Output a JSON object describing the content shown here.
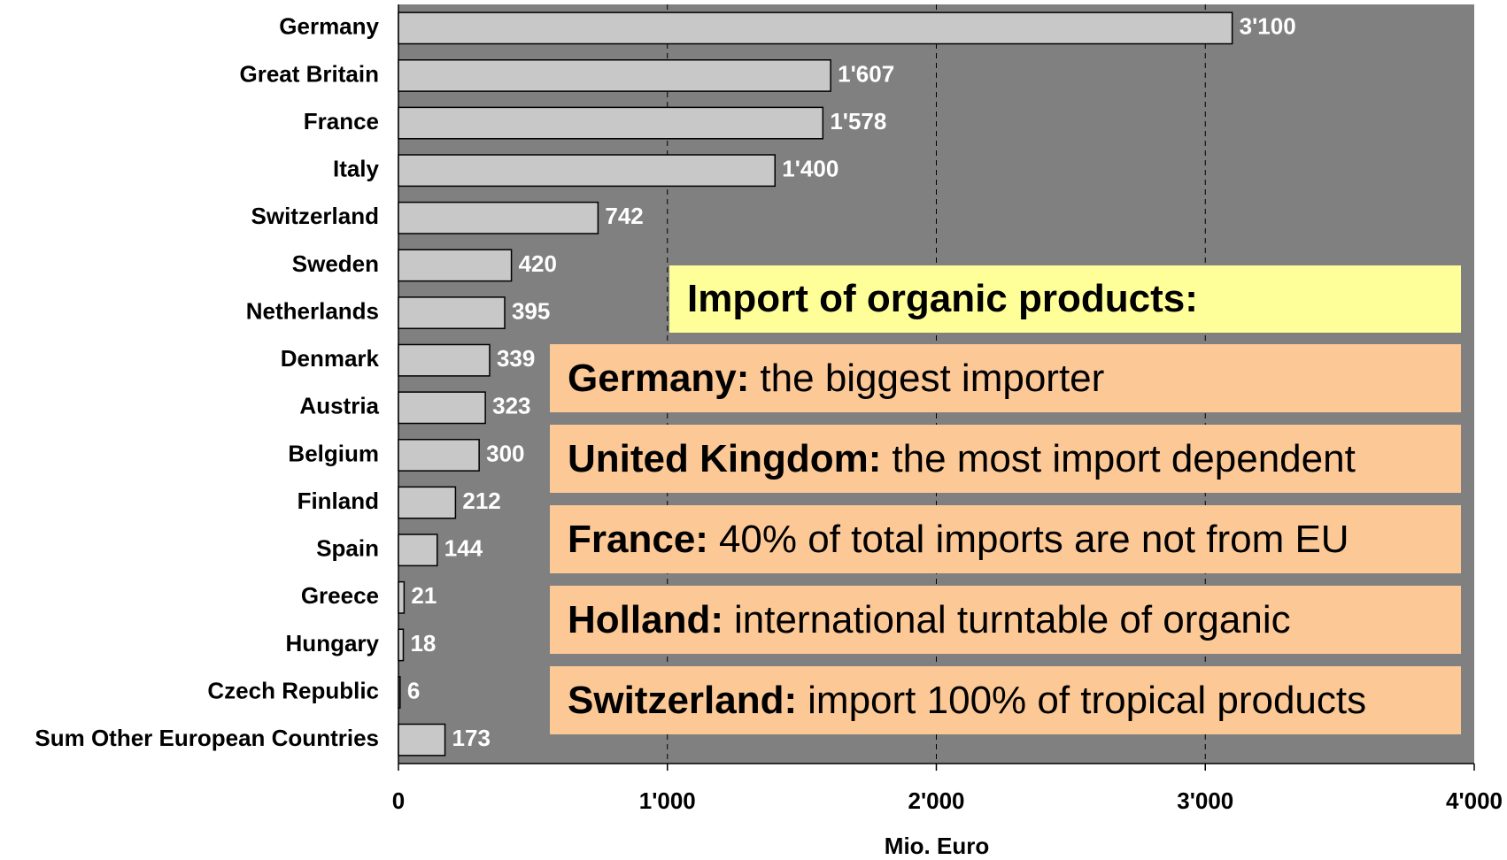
{
  "chart_data": {
    "type": "hbar",
    "categories": [
      "Germany",
      "Great Britain",
      "France",
      "Italy",
      "Switzerland",
      "Sweden",
      "Netherlands",
      "Denmark",
      "Austria",
      "Belgium",
      "Finland",
      "Spain",
      "Greece",
      "Hungary",
      "Czech Republic",
      "Sum Other European Countries"
    ],
    "values": [
      3100,
      1607,
      1578,
      1400,
      742,
      420,
      395,
      339,
      323,
      300,
      212,
      144,
      21,
      18,
      6,
      173
    ],
    "value_labels": [
      "3'100",
      "1'607",
      "1'578",
      "1'400",
      "742",
      "420",
      "395",
      "339",
      "323",
      "300",
      "212",
      "144",
      "21",
      "18",
      "6",
      "173"
    ],
    "color": "#c8c8c8",
    "xlim": [
      0,
      4000
    ],
    "xticks": [
      0,
      {
        "value": 1000,
        "label": "1'000"
      },
      {
        "value": 2000,
        "label": "2'000"
      },
      {
        "value": 3000,
        "label": "3'000"
      },
      {
        "value": 4000,
        "label": "4'000"
      }
    ],
    "xlabel": "Mio. Euro",
    "grid": true,
    "annotation_title": "Import of organic products:",
    "annotations": [
      {
        "bold": "Germany:",
        "text": "the biggest importer"
      },
      {
        "bold": "United Kingdom:",
        "text": "the most import dependent"
      },
      {
        "bold": "France:",
        "text": "40% of total imports are not from EU"
      },
      {
        "bold": "Holland:",
        "text": "international turntable of organic"
      },
      {
        "bold": "Switzerland:",
        "text": "import 100% of tropical products"
      }
    ]
  }
}
